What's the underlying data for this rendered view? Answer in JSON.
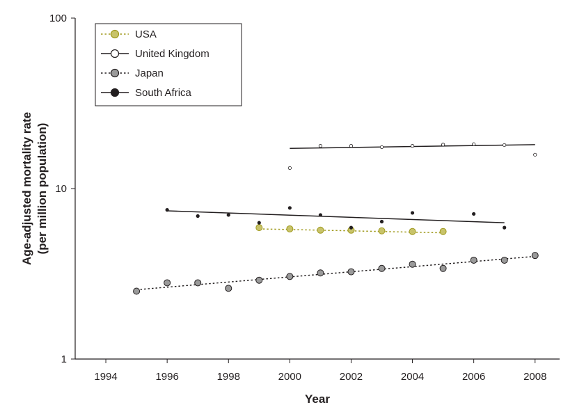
{
  "chart_data": {
    "type": "scatter",
    "xlabel": "Year",
    "ylabel_line1": "Age-adjusted mortality rate",
    "ylabel_line2": "(per million population)",
    "xlim": [
      1993,
      2008.8
    ],
    "xticks": [
      1994,
      1996,
      1998,
      2000,
      2002,
      2004,
      2006,
      2008
    ],
    "xtick_labels": [
      "1994",
      "1996",
      "1998",
      "2000",
      "2002",
      "2004",
      "2006",
      "2008"
    ],
    "ylim": [
      1,
      100
    ],
    "yscale": "log",
    "yticks": [
      1,
      10,
      100
    ],
    "ytick_labels": [
      "1",
      "10",
      "100"
    ],
    "legend_position": "top-left",
    "series": [
      {
        "name": "USA",
        "color": "#a09a1e",
        "fill": "#c8c36a",
        "marker_size": "large",
        "x": [
          1999,
          2000,
          2001,
          2002,
          2003,
          2004,
          2005
        ],
        "y": [
          5.9,
          5.8,
          5.7,
          5.7,
          5.65,
          5.6,
          5.6
        ],
        "trend": {
          "x": [
            1999,
            2005
          ],
          "y": [
            5.8,
            5.5
          ],
          "dash": "dotted"
        }
      },
      {
        "name": "United Kingdom",
        "color": "#231f20",
        "fill": "#ffffff",
        "marker_size": "small",
        "x": [
          2000,
          2001,
          2002,
          2003,
          2004,
          2005,
          2006,
          2007,
          2008
        ],
        "y": [
          13.2,
          17.8,
          17.8,
          17.5,
          17.8,
          18.1,
          18.2,
          18.0,
          15.8
        ],
        "trend": {
          "x": [
            2000,
            2008
          ],
          "y": [
            17.2,
            18.1
          ],
          "dash": "solid"
        }
      },
      {
        "name": "Japan",
        "color": "#231f20",
        "fill": "#9a9a9a",
        "marker_size": "large",
        "x": [
          1995,
          1996,
          1997,
          1998,
          1999,
          2000,
          2001,
          2002,
          2003,
          2004,
          2005,
          2006,
          2007,
          2008
        ],
        "y": [
          2.5,
          2.8,
          2.8,
          2.6,
          2.9,
          3.05,
          3.2,
          3.25,
          3.4,
          3.6,
          3.4,
          3.8,
          3.8,
          4.05
        ],
        "trend": {
          "x": [
            1995,
            2008
          ],
          "y": [
            2.55,
            4.0
          ],
          "dash": "dotted"
        }
      },
      {
        "name": "South Africa",
        "color": "#231f20",
        "fill": "#231f20",
        "marker_size": "small",
        "x": [
          1996,
          1997,
          1998,
          1999,
          2000,
          2001,
          2002,
          2003,
          2004,
          2006,
          2007
        ],
        "y": [
          7.5,
          6.9,
          7.0,
          6.3,
          7.7,
          7.0,
          5.9,
          6.4,
          7.2,
          7.1,
          5.9
        ],
        "trend": {
          "x": [
            1996,
            2007
          ],
          "y": [
            7.4,
            6.3
          ],
          "dash": "solid"
        }
      }
    ]
  }
}
